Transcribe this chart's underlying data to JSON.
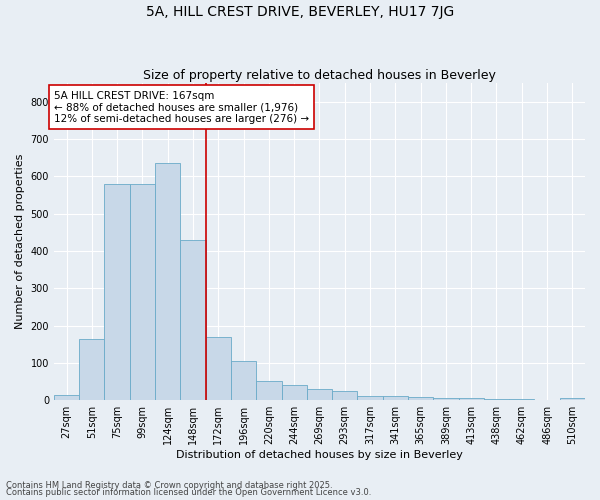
{
  "title": "5A, HILL CREST DRIVE, BEVERLEY, HU17 7JG",
  "subtitle": "Size of property relative to detached houses in Beverley",
  "xlabel": "Distribution of detached houses by size in Beverley",
  "ylabel": "Number of detached properties",
  "categories": [
    "27sqm",
    "51sqm",
    "75sqm",
    "99sqm",
    "124sqm",
    "148sqm",
    "172sqm",
    "196sqm",
    "220sqm",
    "244sqm",
    "269sqm",
    "293sqm",
    "317sqm",
    "341sqm",
    "365sqm",
    "389sqm",
    "413sqm",
    "438sqm",
    "462sqm",
    "486sqm",
    "510sqm"
  ],
  "values": [
    15,
    165,
    580,
    580,
    635,
    430,
    170,
    105,
    52,
    42,
    30,
    25,
    12,
    12,
    8,
    5,
    5,
    3,
    2,
    1,
    5
  ],
  "bar_color": "#c8d8e8",
  "bar_edge_color": "#6aaac8",
  "annotation_text": "5A HILL CREST DRIVE: 167sqm\n← 88% of detached houses are smaller (1,976)\n12% of semi-detached houses are larger (276) →",
  "annotation_box_color": "#ffffff",
  "annotation_box_edge": "#cc0000",
  "marker_line_color": "#cc0000",
  "ylim": [
    0,
    850
  ],
  "yticks": [
    0,
    100,
    200,
    300,
    400,
    500,
    600,
    700,
    800
  ],
  "background_color": "#e8eef4",
  "grid_color": "#ffffff",
  "footnote1": "Contains HM Land Registry data © Crown copyright and database right 2025.",
  "footnote2": "Contains public sector information licensed under the Open Government Licence v3.0.",
  "title_fontsize": 10,
  "subtitle_fontsize": 9,
  "axis_label_fontsize": 8,
  "tick_fontsize": 7,
  "annotation_fontsize": 7.5,
  "footnote_fontsize": 6
}
